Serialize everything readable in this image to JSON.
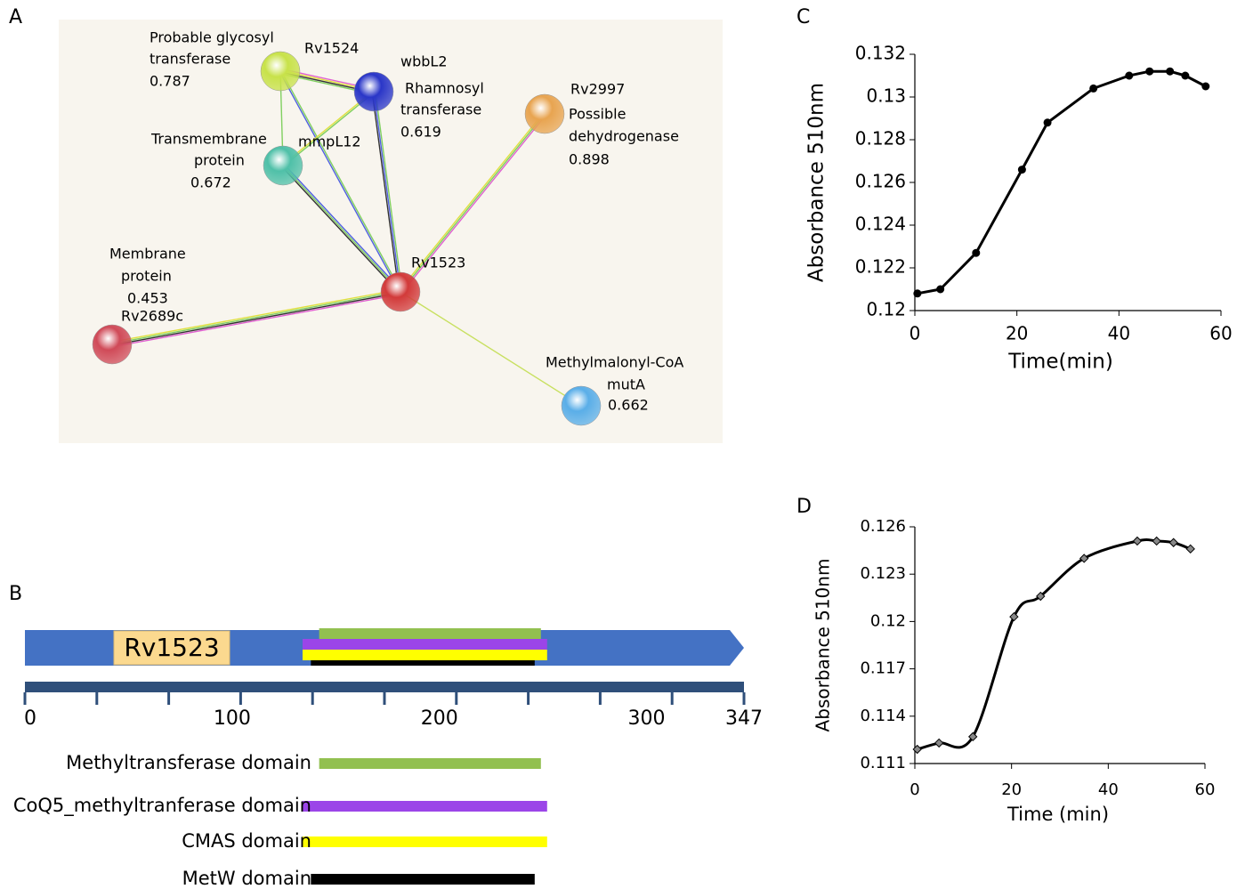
{
  "panel_labels": [
    "A",
    "B",
    "C",
    "D"
  ],
  "network": {
    "nodes": [
      {
        "name": "Rv1524",
        "description": [
          "Probable glycosyl",
          "transferase"
        ],
        "score": 0.787
      },
      {
        "name": "wbbL2",
        "description": [
          "Rhamnosyl",
          "transferase"
        ],
        "score": 0.619
      },
      {
        "name": "Rv2997",
        "description": [
          "Possible",
          "dehydrogenase"
        ],
        "score": 0.898
      },
      {
        "name": "mmpL12",
        "description": [
          "Transmembrane",
          "protein"
        ],
        "score": 0.672
      },
      {
        "name": "Rv1523"
      },
      {
        "name": "Rv2689c",
        "description": [
          "Membrane",
          "protein"
        ],
        "score": 0.453
      },
      {
        "name": "mutA",
        "description": [
          "Methylmalonyl-CoA"
        ],
        "score": 0.662
      }
    ]
  },
  "domain_map": {
    "protein": "Rv1523",
    "xlim": [
      0,
      347
    ],
    "xticks": [
      0,
      100,
      200,
      300,
      347
    ],
    "minor_ticks": [
      0,
      34.7,
      69.4,
      104.1,
      138.8,
      173.5,
      208.2,
      242.9,
      277.6,
      312.3,
      347
    ],
    "domains": [
      {
        "name": "Methyltransferase domain",
        "start": 142,
        "end": 249,
        "color": "#92c050"
      },
      {
        "name": "CoQ5_methyltranferase domain",
        "start": 134,
        "end": 252,
        "color": "#9b45e8"
      },
      {
        "name": "CMAS domain",
        "start": 134,
        "end": 252,
        "color": "#ffff00"
      },
      {
        "name": "MetW domain",
        "start": 138,
        "end": 246,
        "color": "#000000"
      }
    ]
  },
  "chart_data": [
    {
      "type": "line",
      "x_label": "Time(min)",
      "y_label": "Absorbance 510nm",
      "x": [
        0.5,
        5,
        12,
        21,
        26,
        35,
        42,
        46,
        50,
        53,
        57
      ],
      "series": [
        {
          "color": "#000000",
          "marker": "circle",
          "values": [
            0.1208,
            0.121,
            0.1227,
            0.1266,
            0.1288,
            0.1304,
            0.131,
            0.1312,
            0.1312,
            0.131,
            0.1305
          ]
        }
      ],
      "xlim": [
        0,
        60
      ],
      "xticks": [
        0,
        20,
        40,
        60
      ],
      "ylim": [
        0.12,
        0.132
      ],
      "yticks": [
        0.12,
        0.122,
        0.124,
        0.126,
        0.128,
        0.13,
        0.132
      ],
      "smooth": false
    },
    {
      "type": "line",
      "x_label": "Time (min)",
      "y_label": "Absorbance 510nm",
      "x": [
        0.5,
        5,
        12,
        20.5,
        26,
        35,
        46,
        50,
        53.5,
        57
      ],
      "series": [
        {
          "color": "#000000",
          "marker": "diamond",
          "values": [
            0.1119,
            0.1123,
            0.1127,
            0.1203,
            0.1216,
            0.124,
            0.1251,
            0.1251,
            0.125,
            0.1246
          ]
        }
      ],
      "xlim": [
        0,
        60
      ],
      "xticks": [
        0,
        20,
        40,
        60
      ],
      "ylim": [
        0.111,
        0.126
      ],
      "yticks": [
        0.111,
        0.114,
        0.117,
        0.12,
        0.123,
        0.126
      ],
      "smooth": true
    }
  ]
}
